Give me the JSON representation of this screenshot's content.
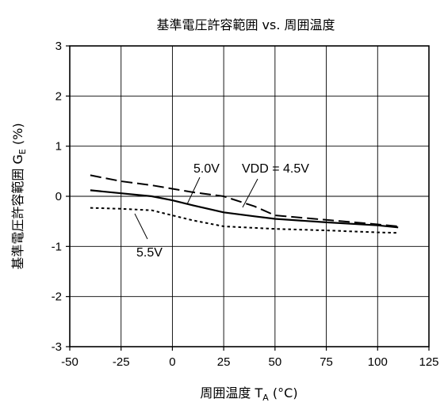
{
  "chart_data": {
    "type": "line",
    "title": "基準電圧許容範囲 vs. 周囲温度",
    "xlabel": {
      "main": "周囲温度  T",
      "sub": "A",
      "tail": "  (°C)"
    },
    "ylabel": {
      "main": "基準電圧許容範囲  G",
      "sub": "E",
      "tail": "  (%)"
    },
    "xlim": [
      -50,
      125
    ],
    "ylim": [
      -3,
      3
    ],
    "xticks": [
      "-50",
      "-25",
      "0",
      "25",
      "50",
      "75",
      "100",
      "125"
    ],
    "yticks": [
      "-3",
      "-2",
      "-1",
      "0",
      "1",
      "2",
      "3"
    ],
    "grid": true,
    "series": [
      {
        "name": "VDD = 4.5V",
        "style": "dashed",
        "x": [
          -40,
          -25,
          -10,
          0,
          10,
          25,
          40,
          50,
          75,
          100,
          110
        ],
        "y": [
          0.42,
          0.3,
          0.22,
          0.15,
          0.08,
          0.0,
          -0.2,
          -0.38,
          -0.47,
          -0.56,
          -0.6
        ]
      },
      {
        "name": "5.0V",
        "style": "solid",
        "x": [
          -40,
          -25,
          -10,
          0,
          10,
          25,
          40,
          50,
          75,
          100,
          110
        ],
        "y": [
          0.12,
          0.06,
          0.0,
          -0.08,
          -0.18,
          -0.32,
          -0.4,
          -0.45,
          -0.52,
          -0.58,
          -0.62
        ]
      },
      {
        "name": "5.5V",
        "style": "dotted",
        "x": [
          -40,
          -25,
          -10,
          0,
          10,
          25,
          40,
          50,
          75,
          100,
          110
        ],
        "y": [
          -0.23,
          -0.25,
          -0.28,
          -0.38,
          -0.48,
          -0.6,
          -0.63,
          -0.65,
          -0.68,
          -0.72,
          -0.73
        ]
      }
    ],
    "annotations": [
      {
        "text": "5.0V"
      },
      {
        "text": "VDD = 4.5V"
      },
      {
        "text": "5.5V"
      }
    ],
    "colors": {
      "line": "#000000",
      "grid": "#000000",
      "background": "#ffffff"
    }
  }
}
